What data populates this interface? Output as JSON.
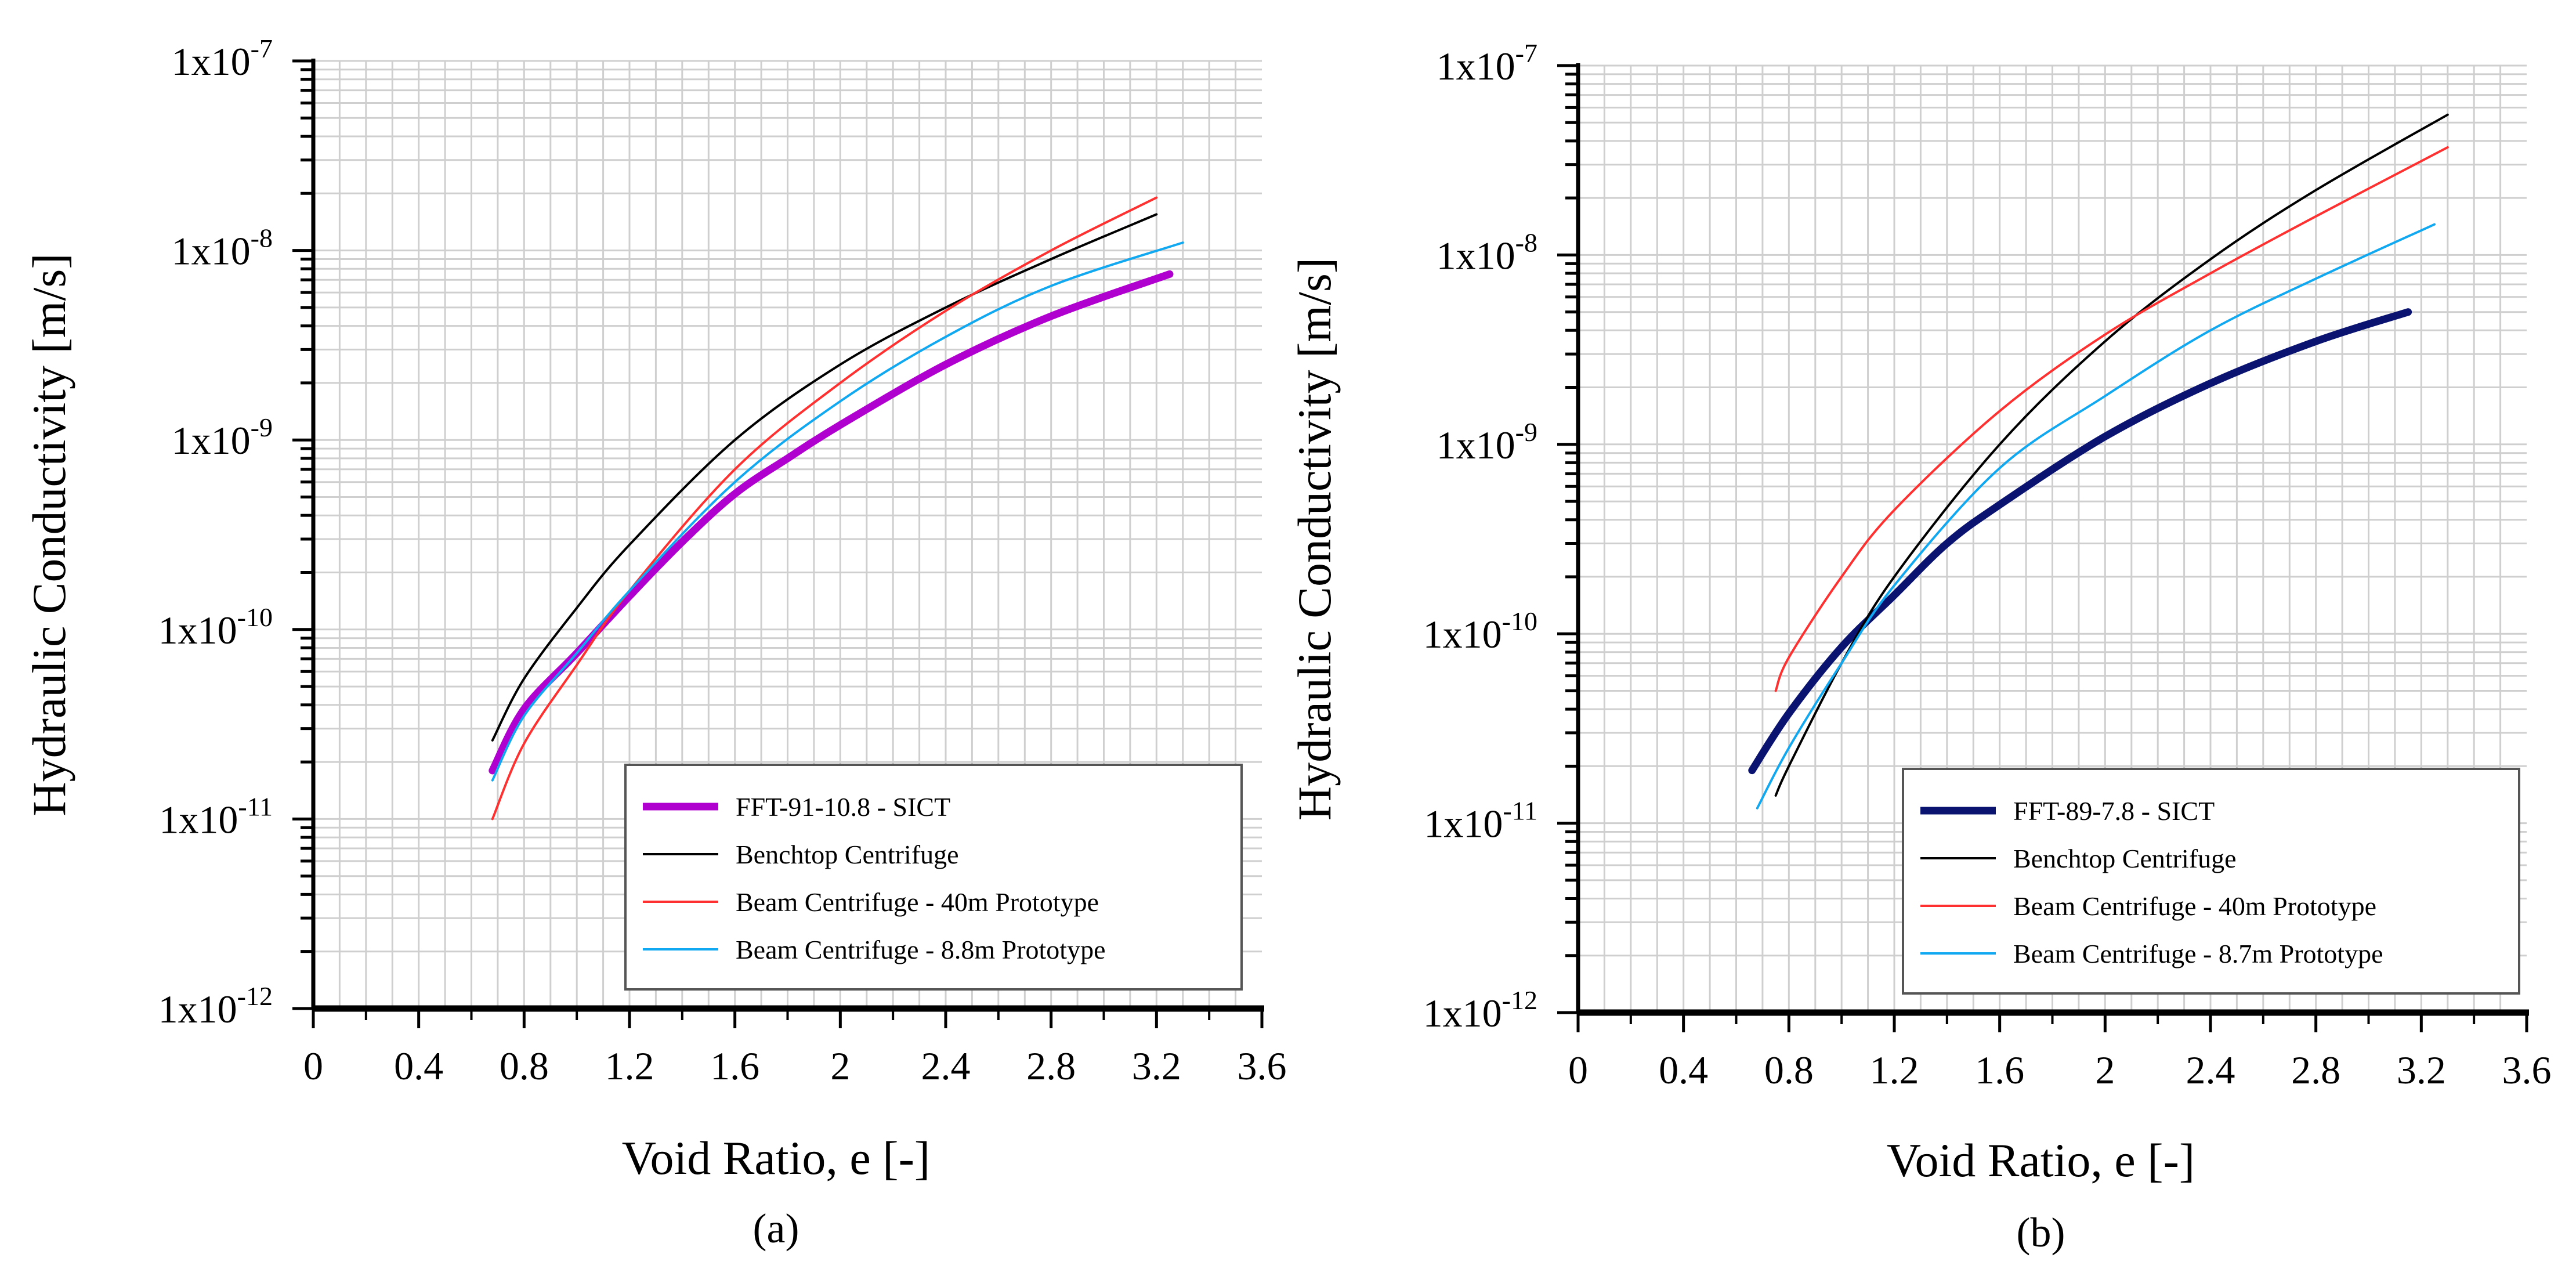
{
  "chart_data": [
    {
      "type": "line",
      "caption": "(a)",
      "xlabel": "Void Ratio, e [-]",
      "ylabel": "Hydraulic Conductivity [m/s]",
      "xlim": [
        0,
        3.6
      ],
      "ylim": [
        1e-12,
        1e-07
      ],
      "yscale": "log",
      "grid": true,
      "legend_position": "bottom-right",
      "x_ticks": [
        "0",
        "0.4",
        "0.8",
        "1.2",
        "1.6",
        "2",
        "2.4",
        "2.8",
        "3.2",
        "3.6"
      ],
      "y_ticks": [
        {
          "base": "1x10",
          "exp": "-12"
        },
        {
          "base": "1x10",
          "exp": "-11"
        },
        {
          "base": "1x10",
          "exp": "-10"
        },
        {
          "base": "1x10",
          "exp": "-9"
        },
        {
          "base": "1x10",
          "exp": "-8"
        },
        {
          "base": "1x10",
          "exp": "-7"
        }
      ],
      "series": [
        {
          "name": "FFT-91-10.8 - SICT",
          "color": "#b000d0",
          "width": 13,
          "x": [
            0.68,
            0.8,
            1.0,
            1.2,
            1.4,
            1.6,
            1.8,
            2.0,
            2.4,
            2.8,
            3.25
          ],
          "y": [
            1.8e-11,
            3.8e-11,
            7.5e-11,
            1.5e-10,
            2.9e-10,
            5.2e-10,
            8e-10,
            1.2e-09,
            2.5e-09,
            4.5e-09,
            7.5e-09
          ]
        },
        {
          "name": "Benchtop Centrifuge",
          "color": "#000000",
          "width": 4,
          "x": [
            0.68,
            0.8,
            1.0,
            1.2,
            1.6,
            2.0,
            2.4,
            2.8,
            3.2
          ],
          "y": [
            2.6e-11,
            5.5e-11,
            1.3e-10,
            2.8e-10,
            1e-09,
            2.5e-09,
            5e-09,
            9e-09,
            1.55e-08
          ]
        },
        {
          "name": "Beam Centrifuge - 40m Prototype",
          "color": "#ff3030",
          "width": 4,
          "x": [
            0.68,
            0.8,
            1.0,
            1.2,
            1.6,
            2.0,
            2.4,
            2.8,
            3.2
          ],
          "y": [
            1e-11,
            2.5e-11,
            6.5e-11,
            1.6e-10,
            7e-10,
            2e-09,
            4.8e-09,
            1e-08,
            1.9e-08
          ]
        },
        {
          "name": "Beam Centrifuge - 8.8m Prototype",
          "color": "#10a8f0",
          "width": 4,
          "x": [
            0.68,
            0.8,
            1.0,
            1.2,
            1.6,
            2.0,
            2.4,
            2.8,
            3.3
          ],
          "y": [
            1.6e-11,
            3.5e-11,
            7.5e-11,
            1.6e-10,
            6e-10,
            1.6e-09,
            3.5e-09,
            6.5e-09,
            1.1e-08
          ]
        }
      ]
    },
    {
      "type": "line",
      "caption": "(b)",
      "xlabel": "Void Ratio, e [-]",
      "ylabel": "Hydraulic Conductivity [m/s]",
      "xlim": [
        0,
        3.6
      ],
      "ylim": [
        1e-12,
        1e-07
      ],
      "yscale": "log",
      "grid": true,
      "legend_position": "bottom-right",
      "x_ticks": [
        "0",
        "0.4",
        "0.8",
        "1.2",
        "1.6",
        "2",
        "2.4",
        "2.8",
        "3.2",
        "3.6"
      ],
      "y_ticks": [
        {
          "base": "1x10",
          "exp": "-12"
        },
        {
          "base": "1x10",
          "exp": "-11"
        },
        {
          "base": "1x10",
          "exp": "-10"
        },
        {
          "base": "1x10",
          "exp": "-9"
        },
        {
          "base": "1x10",
          "exp": "-8"
        },
        {
          "base": "1x10",
          "exp": "-7"
        }
      ],
      "series": [
        {
          "name": "FFT-89-7.8 - SICT",
          "color": "#0a1470",
          "width": 13,
          "x": [
            0.66,
            0.8,
            1.0,
            1.2,
            1.4,
            1.6,
            2.0,
            2.4,
            2.8,
            3.15
          ],
          "y": [
            1.9e-11,
            3.8e-11,
            8.5e-11,
            1.6e-10,
            3e-10,
            4.8e-10,
            1.1e-09,
            2.1e-09,
            3.5e-09,
            5e-09
          ]
        },
        {
          "name": "Benchtop Centrifuge",
          "color": "#000000",
          "width": 4,
          "x": [
            0.75,
            0.8,
            1.0,
            1.2,
            1.6,
            2.0,
            2.4,
            2.8,
            3.3
          ],
          "y": [
            1.4e-11,
            2e-11,
            7e-11,
            2e-10,
            1e-09,
            3.5e-09,
            9.5e-09,
            2.2e-08,
            5.5e-08
          ]
        },
        {
          "name": "Beam Centrifuge - 40m Prototype",
          "color": "#ff3030",
          "width": 4,
          "x": [
            0.75,
            0.8,
            1.0,
            1.2,
            1.6,
            2.0,
            2.4,
            2.8,
            3.3
          ],
          "y": [
            5e-11,
            7.5e-11,
            2e-10,
            4.5e-10,
            1.5e-09,
            3.8e-09,
            8e-09,
            1.6e-08,
            3.7e-08
          ]
        },
        {
          "name": "Beam Centrifuge - 8.7m Prototype",
          "color": "#10a8f0",
          "width": 4,
          "x": [
            0.68,
            0.8,
            1.0,
            1.2,
            1.6,
            2.0,
            2.4,
            2.8,
            3.25
          ],
          "y": [
            1.2e-11,
            2.5e-11,
            7e-11,
            1.8e-10,
            7.5e-10,
            1.8e-09,
            4e-09,
            7.5e-09,
            1.45e-08
          ]
        }
      ]
    }
  ]
}
